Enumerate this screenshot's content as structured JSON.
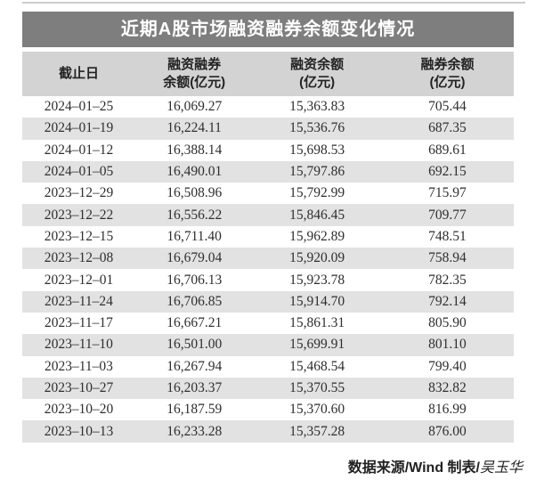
{
  "title": "近期A股市场融资融券余额变化情况",
  "table": {
    "header_lines": [
      [
        "截止日",
        ""
      ],
      [
        "融资融券",
        "余额(亿元)"
      ],
      [
        "融资余额",
        "(亿元)"
      ],
      [
        "融券余额",
        "(亿元)"
      ]
    ]
  },
  "chart_data": {
    "type": "table",
    "title": "近期A股市场融资融券余额变化情况",
    "columns": [
      "截止日",
      "融资融券余额(亿元)",
      "融资余额(亿元)",
      "融券余额(亿元)"
    ],
    "rows": [
      [
        "2024–01–25",
        "16,069.27",
        "15,363.83",
        "705.44"
      ],
      [
        "2024–01–19",
        "16,224.11",
        "15,536.76",
        "687.35"
      ],
      [
        "2024–01–12",
        "16,388.14",
        "15,698.53",
        "689.61"
      ],
      [
        "2024–01–05",
        "16,490.01",
        "15,797.86",
        "692.15"
      ],
      [
        "2023–12–29",
        "16,508.96",
        "15,792.99",
        "715.97"
      ],
      [
        "2023–12–22",
        "16,556.22",
        "15,846.45",
        "709.77"
      ],
      [
        "2023–12–15",
        "16,711.40",
        "15,962.89",
        "748.51"
      ],
      [
        "2023–12–08",
        "16,679.04",
        "15,920.09",
        "758.94"
      ],
      [
        "2023–12–01",
        "16,706.13",
        "15,923.78",
        "782.35"
      ],
      [
        "2023–11–24",
        "16,706.85",
        "15,914.70",
        "792.14"
      ],
      [
        "2023–11–17",
        "16,667.21",
        "15,861.31",
        "805.90"
      ],
      [
        "2023–11–10",
        "16,501.00",
        "15,699.91",
        "801.10"
      ],
      [
        "2023–11–03",
        "16,267.94",
        "15,468.54",
        "799.40"
      ],
      [
        "2023–10–27",
        "16,203.37",
        "15,370.55",
        "832.82"
      ],
      [
        "2023–10–20",
        "16,187.59",
        "15,370.60",
        "816.99"
      ],
      [
        "2023–10–13",
        "16,233.28",
        "15,357.28",
        "876.00"
      ]
    ]
  },
  "footer": {
    "source_label": "数据来源/Wind 制表/",
    "author": "吴玉华"
  },
  "colors": {
    "title_bg": "#7e7e7e",
    "title_text": "#ffffff",
    "header_bg": "#d3d3d3",
    "stripe_bg": "#e2e2e2",
    "text": "#2e2e2e"
  }
}
